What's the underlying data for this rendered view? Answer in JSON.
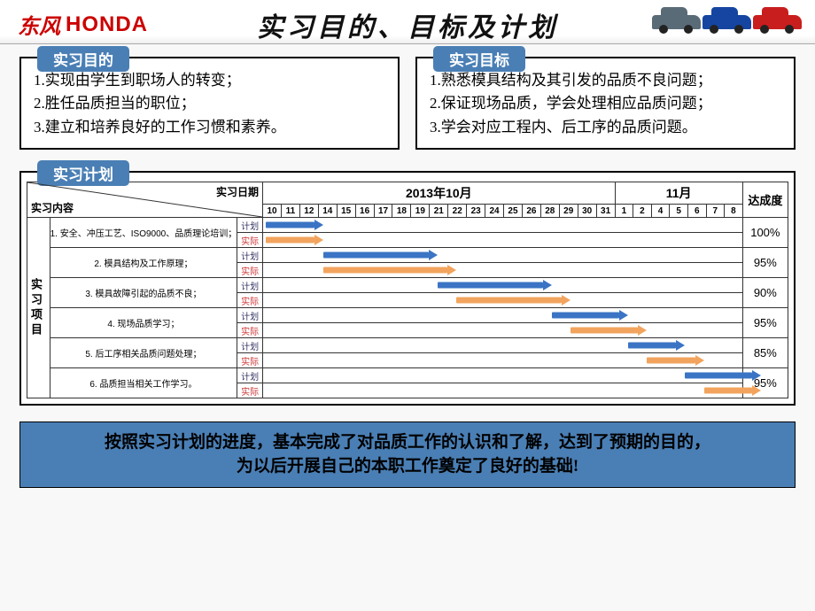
{
  "header": {
    "dongfeng": "东风",
    "honda": "HONDA",
    "title": "实习目的、目标及计划",
    "car_colors": [
      "#5a6b78",
      "#1545a0",
      "#c91e1e"
    ]
  },
  "purpose": {
    "badge": "实习目的",
    "lines": [
      "1.实现由学生到职场人的转变；",
      "2.胜任品质担当的职位；",
      "3.建立和培养良好的工作习惯和素养。"
    ]
  },
  "objective": {
    "badge": "实习目标",
    "lines": [
      "1.熟悉模具结构及其引发的品质不良问题；",
      "2.保证现场品质，学会处理相应品质问题；",
      "3.学会对应工程内、后工序的品质问题。"
    ]
  },
  "plan": {
    "badge": "实习计划",
    "diag_top": "实习日期",
    "diag_bot": "实习内容",
    "month1": "2013年10月",
    "month2": "11月",
    "completion_header": "达成度",
    "side_label": "实习项目",
    "dates": [
      "10",
      "11",
      "12",
      "14",
      "15",
      "16",
      "17",
      "18",
      "19",
      "21",
      "22",
      "23",
      "24",
      "25",
      "26",
      "28",
      "29",
      "30",
      "31",
      "1",
      "2",
      "4",
      "5",
      "6",
      "7",
      "8"
    ],
    "plan_label": "计划",
    "actual_label": "实际",
    "tasks": [
      {
        "name": "1. 安全、冲压工艺、ISO9000、品质理论培训；",
        "plan_start": 0,
        "plan_end": 3,
        "act_start": 0,
        "act_end": 3,
        "completion": "100%"
      },
      {
        "name": "2. 模具结构及工作原理；",
        "plan_start": 3,
        "plan_end": 9,
        "act_start": 3,
        "act_end": 10,
        "completion": "95%"
      },
      {
        "name": "3. 模具故障引起的品质不良；",
        "plan_start": 9,
        "plan_end": 15,
        "act_start": 10,
        "act_end": 16,
        "completion": "90%"
      },
      {
        "name": "4. 现场品质学习；",
        "plan_start": 15,
        "plan_end": 19,
        "act_start": 16,
        "act_end": 20,
        "completion": "95%"
      },
      {
        "name": "5. 后工序相关品质问题处理；",
        "plan_start": 19,
        "plan_end": 22,
        "act_start": 20,
        "act_end": 23,
        "completion": "85%"
      },
      {
        "name": "6. 品质担当相关工作学习。",
        "plan_start": 22,
        "plan_end": 26,
        "act_start": 23,
        "act_end": 26,
        "completion": "95%"
      }
    ],
    "colors": {
      "plan": "#3b74c4",
      "actual": "#f2a45e",
      "badge_bg": "#4a7fb5"
    }
  },
  "footer": {
    "line1": "按照实习计划的进度，基本完成了对品质工作的认识和了解，达到了预期的目的，",
    "line2": "为以后开展自己的本职工作奠定了良好的基础!"
  }
}
